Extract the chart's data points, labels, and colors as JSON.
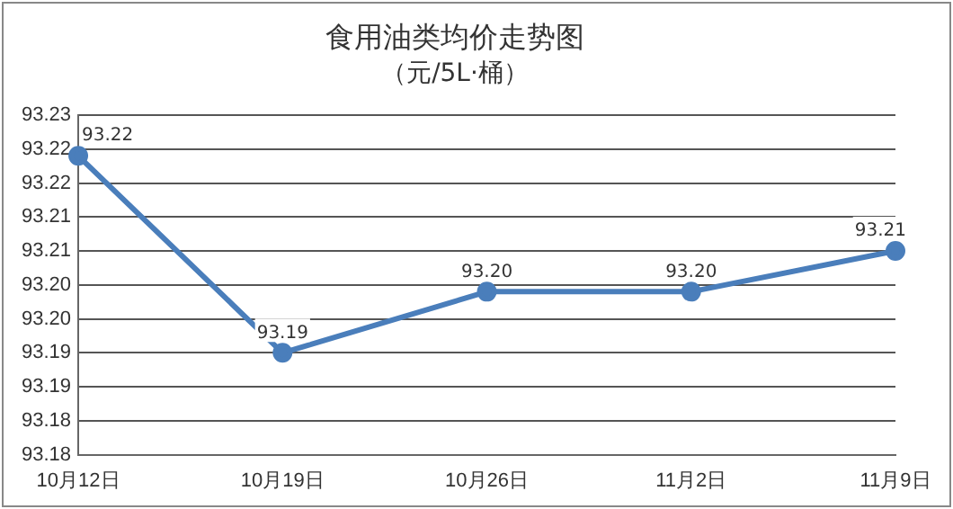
{
  "chart_data": {
    "type": "line",
    "title": "食用油类均价走势图",
    "subtitle": "（元/5L·桶）",
    "categories": [
      "10月12日",
      "10月19日",
      "10月26日",
      "11月2日",
      "11月9日"
    ],
    "series": [
      {
        "color": "#4a7ebb",
        "values": [
          93.224,
          93.195,
          93.204,
          93.204,
          93.21
        ],
        "value_labels": [
          "93.22",
          "93.19",
          "93.20",
          "93.20",
          "93.21"
        ]
      }
    ],
    "ylim": [
      93.18,
      93.23
    ],
    "yticks": [
      {
        "value": 93.18,
        "label": "93.18"
      },
      {
        "value": 93.185,
        "label": "93.18"
      },
      {
        "value": 93.19,
        "label": "93.19"
      },
      {
        "value": 93.195,
        "label": "93.19"
      },
      {
        "value": 93.2,
        "label": "93.20"
      },
      {
        "value": 93.205,
        "label": "93.20"
      },
      {
        "value": 93.21,
        "label": "93.21"
      },
      {
        "value": 93.215,
        "label": "93.21"
      },
      {
        "value": 93.22,
        "label": "93.22"
      },
      {
        "value": 93.225,
        "label": "93.22"
      },
      {
        "value": 93.23,
        "label": "93.23"
      }
    ],
    "grid": "y",
    "legend": false,
    "marker": "circle",
    "line_style": "solid"
  }
}
